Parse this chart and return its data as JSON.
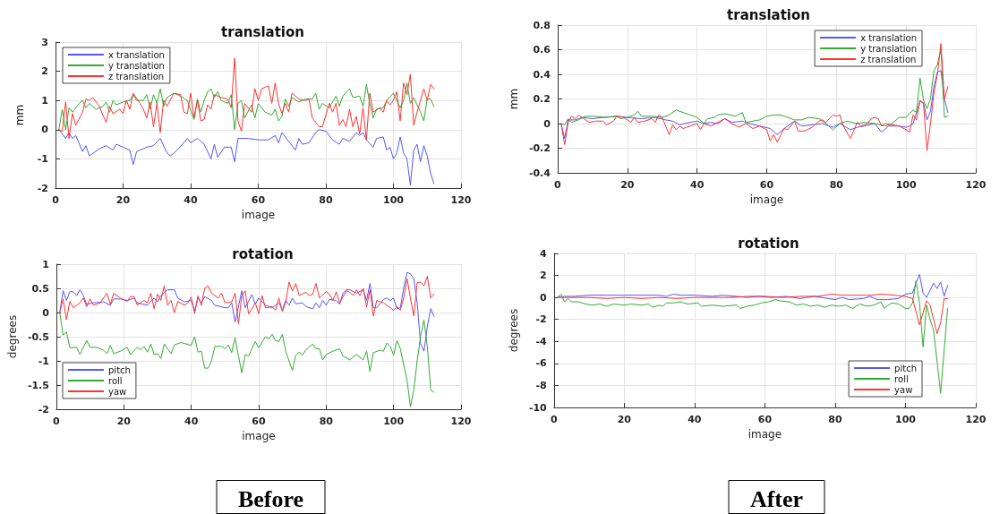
{
  "chart_data": [
    {
      "type": "line",
      "title": "translation",
      "xlabel": "image",
      "ylabel": "mm",
      "xlim": [
        0,
        120
      ],
      "xticks": [
        0,
        20,
        40,
        60,
        80,
        100,
        120
      ],
      "ylim": [
        -2,
        3
      ],
      "yticks": [
        -2,
        -1,
        0,
        1,
        2,
        3
      ],
      "grid": true,
      "legend": "top left",
      "marker": "none",
      "line_style": "solid",
      "series": [
        {
          "name": "x translation",
          "color": "#5555ff",
          "x": [
            1,
            3,
            4,
            5,
            6,
            8,
            9,
            10,
            13,
            15,
            17,
            18,
            20,
            22,
            23,
            24,
            27,
            29,
            31,
            33,
            34,
            36,
            39,
            40,
            42,
            44,
            46,
            47,
            48,
            50,
            52,
            53,
            54,
            57,
            60,
            63,
            65,
            66,
            67,
            69,
            71,
            72,
            73,
            75,
            77,
            78,
            80,
            82,
            84,
            85,
            87,
            89,
            90,
            91,
            92,
            94,
            95,
            97,
            98,
            99,
            100,
            101,
            102,
            103,
            104,
            105,
            106,
            107,
            108,
            109,
            110,
            111,
            112
          ],
          "values": [
            0,
            -0.3,
            -0.1,
            -0.3,
            -0.2,
            -0.75,
            -0.55,
            -0.9,
            -0.65,
            -0.55,
            -0.7,
            -0.5,
            -0.6,
            -0.7,
            -1.2,
            -0.75,
            -0.6,
            -0.55,
            -0.3,
            -0.8,
            -0.9,
            -0.7,
            -0.3,
            -0.45,
            -0.3,
            -0.5,
            -1.0,
            -0.5,
            -0.95,
            -0.6,
            -0.6,
            -1.1,
            -0.3,
            -0.3,
            -0.35,
            -0.35,
            -0.2,
            -0.45,
            -0.1,
            -0.4,
            -0.7,
            -0.3,
            -0.5,
            -0.45,
            -0.1,
            0,
            -0.05,
            -0.35,
            -0.5,
            -0.3,
            -0.4,
            -0.1,
            -0.2,
            -0.1,
            -0.35,
            -0.6,
            -0.3,
            -0.25,
            -0.7,
            -0.6,
            -1.0,
            -0.8,
            -0.25,
            -0.8,
            -1.0,
            -1.9,
            -0.7,
            -0.5,
            -1.1,
            -0.55,
            -0.9,
            -1.5,
            -1.85
          ]
        },
        {
          "name": "y translation",
          "color": "#33aa33",
          "x": [
            1,
            2,
            3,
            4,
            5,
            7,
            8,
            9,
            10,
            12,
            14,
            15,
            16,
            17,
            18,
            20,
            22,
            23,
            24,
            26,
            27,
            28,
            29,
            30,
            31,
            32,
            33,
            35,
            37,
            39,
            41,
            42,
            43,
            44,
            45,
            46,
            47,
            48,
            49,
            51,
            52,
            53,
            54,
            55,
            56,
            58,
            59,
            60,
            62,
            64,
            65,
            66,
            67,
            68,
            69,
            70,
            72,
            74,
            76,
            77,
            78,
            79,
            81,
            83,
            84,
            85,
            87,
            88,
            90,
            91,
            92,
            93,
            94,
            95,
            97,
            98,
            100,
            102,
            103,
            104,
            105,
            106,
            108,
            109,
            110,
            111,
            112
          ],
          "values": [
            0,
            0.7,
            0,
            0.75,
            0.6,
            0.9,
            1.0,
            0.75,
            0.9,
            0.7,
            0.8,
            0.95,
            0.6,
            1.0,
            0.85,
            0.95,
            1.0,
            1.2,
            1.0,
            1.0,
            1.2,
            0.7,
            1.2,
            0.9,
            1.4,
            0.8,
            1.1,
            1.25,
            1.15,
            1.0,
            0.35,
            1.05,
            0.6,
            1.0,
            1.3,
            1.4,
            1.1,
            1.3,
            1.0,
            0.9,
            1.2,
            0,
            0.9,
            1.0,
            0.4,
            0.85,
            0.4,
            0.9,
            0.6,
            0.5,
            0.7,
            0.3,
            0.45,
            1.05,
            0.8,
            1.1,
            0.95,
            1.05,
            1.05,
            1.25,
            0.7,
            0.9,
            0.75,
            1.15,
            0.8,
            1.15,
            1.4,
            1.1,
            1.15,
            0.8,
            1.55,
            0.9,
            0.4,
            0.7,
            0.75,
            1.0,
            1.25,
            0.75,
            1.0,
            1.6,
            0.9,
            1.1,
            0.6,
            0.3,
            1.05,
            1.05,
            0.8
          ]
        },
        {
          "name": "z translation",
          "color": "#ff3333",
          "x": [
            1,
            2,
            3,
            4,
            5,
            6,
            8,
            9,
            10,
            11,
            13,
            14,
            15,
            16,
            17,
            19,
            20,
            21,
            22,
            23,
            25,
            26,
            27,
            28,
            29,
            30,
            31,
            32,
            33,
            35,
            37,
            38,
            39,
            40,
            41,
            42,
            43,
            44,
            45,
            46,
            47,
            49,
            51,
            52,
            53,
            54,
            55,
            56,
            58,
            59,
            60,
            61,
            63,
            64,
            65,
            66,
            67,
            68,
            69,
            70,
            72,
            74,
            75,
            76,
            77,
            78,
            79,
            80,
            81,
            82,
            83,
            84,
            85,
            86,
            87,
            88,
            89,
            90,
            91,
            92,
            93,
            94,
            96,
            97,
            98,
            99,
            100,
            101,
            102,
            103,
            104,
            105,
            106,
            107,
            108,
            109,
            110,
            111,
            112
          ],
          "values": [
            0,
            -0.05,
            0.95,
            -0.3,
            0.55,
            0.15,
            0.6,
            1.05,
            1.0,
            1.1,
            0.8,
            0.5,
            0.25,
            0.8,
            0.55,
            0.7,
            0.55,
            1.0,
            0.7,
            1.25,
            0.9,
            0.7,
            0.4,
            0.95,
            0.1,
            0.9,
            -0.1,
            1.0,
            0.8,
            1.25,
            1.2,
            0.6,
            0.55,
            1.25,
            0.4,
            1.0,
            0.3,
            0.35,
            0.85,
            0.7,
            1.2,
            1.1,
            1.05,
            0.75,
            2.45,
            0.3,
            -0.05,
            0.9,
            0.6,
            1.4,
            1.0,
            1.4,
            1.5,
            0.9,
            1.6,
            0.9,
            0.55,
            0.9,
            0.6,
            1.25,
            1.05,
            1.0,
            1.05,
            0.4,
            0.25,
            0.1,
            0.1,
            0.5,
            0.9,
            0.6,
            0.9,
            0.15,
            0.35,
            0.1,
            0.7,
            0.1,
            0.45,
            -0.15,
            0.75,
            -0.35,
            1.25,
            0.6,
            0.75,
            0.6,
            1.0,
            0.85,
            1.0,
            1.3,
            0.3,
            1.6,
            1.2,
            1.9,
            0.15,
            0.6,
            1.0,
            1.4,
            1.0,
            1.55,
            1.4
          ]
        }
      ]
    },
    {
      "type": "line",
      "title": "translation",
      "xlabel": "image",
      "ylabel": "mm",
      "xlim": [
        0,
        120
      ],
      "xticks": [
        0,
        20,
        40,
        60,
        80,
        100,
        120
      ],
      "ylim": [
        -0.4,
        0.8
      ],
      "yticks": [
        -0.4,
        -0.2,
        0,
        0.2,
        0.4,
        0.6,
        0.8
      ],
      "grid": true,
      "legend": "top right",
      "marker": "none",
      "line_style": "solid",
      "series": [
        {
          "name": "x translation",
          "color": "#5555ff",
          "x": [
            1,
            2,
            3,
            5,
            7,
            10,
            13,
            17,
            20,
            24,
            28,
            31,
            33,
            35,
            38,
            40,
            42,
            44,
            46,
            48,
            50,
            53,
            55,
            58,
            61,
            63,
            65,
            68,
            70,
            73,
            76,
            79,
            81,
            84,
            86,
            88,
            91,
            93,
            95,
            98,
            100,
            101,
            102,
            104,
            105,
            106,
            107,
            108,
            109,
            110,
            111,
            112
          ],
          "values": [
            0,
            -0.12,
            0.03,
            0.03,
            0.05,
            0.04,
            0.05,
            0.06,
            0.05,
            0.04,
            0.05,
            0.03,
            0.02,
            -0.01,
            0.01,
            0.02,
            0,
            0.01,
            0,
            0.04,
            0.01,
            0.02,
            0,
            -0.02,
            -0.04,
            -0.09,
            -0.04,
            0.02,
            -0.02,
            -0.01,
            0,
            -0.03,
            0,
            -0.05,
            -0.03,
            -0.02,
            0,
            -0.07,
            -0.02,
            -0.02,
            -0.03,
            -0.02,
            0,
            0.18,
            0.17,
            0.03,
            0.1,
            0.3,
            0.42,
            0.43,
            0.2,
            0.09
          ]
        },
        {
          "name": "y translation",
          "color": "#33aa33",
          "x": [
            1,
            2,
            3,
            4,
            6,
            8,
            10,
            14,
            17,
            18,
            20,
            22,
            23,
            24,
            27,
            30,
            32,
            34,
            37,
            40,
            42,
            43,
            45,
            46,
            48,
            51,
            53,
            54,
            56,
            58,
            60,
            62,
            64,
            66,
            68,
            70,
            72,
            75,
            77,
            79,
            81,
            83,
            86,
            88,
            91,
            94,
            96,
            98,
            100,
            101,
            102,
            103,
            104,
            105,
            106,
            107,
            108,
            109,
            110,
            111,
            112
          ],
          "values": [
            0,
            -0.01,
            0.04,
            0.01,
            0.03,
            0.06,
            0.06,
            0.05,
            0.06,
            0.04,
            0.05,
            0.07,
            0.1,
            0.06,
            0.06,
            0.05,
            0.07,
            0.11,
            0.08,
            0.05,
            0,
            0.04,
            0.05,
            0.07,
            0.08,
            0.06,
            0.09,
            0.01,
            0.02,
            0.03,
            0.06,
            0.07,
            0.07,
            0.05,
            0.03,
            0.03,
            0.05,
            0.04,
            0,
            -0.05,
            0,
            0.02,
            0,
            0.01,
            0,
            -0.02,
            0,
            0.05,
            0.05,
            0.08,
            0.11,
            0.09,
            0.37,
            0.19,
            0.12,
            0.2,
            0.43,
            0.48,
            0.6,
            0.05,
            0.06
          ]
        },
        {
          "name": "z translation",
          "color": "#ff3333",
          "x": [
            1,
            2,
            3,
            4,
            5,
            6,
            7,
            9,
            11,
            13,
            14,
            16,
            17,
            19,
            21,
            22,
            23,
            25,
            27,
            28,
            29,
            30,
            32,
            33,
            34,
            35,
            36,
            38,
            40,
            41,
            42,
            44,
            46,
            48,
            50,
            52,
            54,
            56,
            58,
            60,
            61,
            62,
            63,
            65,
            66,
            68,
            69,
            71,
            73,
            75,
            76,
            77,
            78,
            79,
            80,
            81,
            82,
            84,
            86,
            87,
            89,
            90,
            91,
            92,
            93,
            94,
            96,
            98,
            100,
            101,
            102,
            103,
            104,
            105,
            106,
            107,
            108,
            109,
            110,
            111,
            112
          ],
          "values": [
            0,
            -0.17,
            0.01,
            0.06,
            0.04,
            0.07,
            0.05,
            0.01,
            0.02,
            0.02,
            -0.01,
            0.02,
            0.06,
            0.05,
            0.01,
            0.05,
            0.01,
            0.02,
            0.04,
            0.01,
            0.07,
            0.05,
            -0.09,
            -0.01,
            -0.05,
            -0.02,
            -0.04,
            -0.02,
            0,
            -0.05,
            0,
            -0.02,
            0.01,
            0.04,
            0,
            -0.03,
            0,
            -0.04,
            -0.02,
            -0.05,
            -0.14,
            -0.09,
            -0.15,
            -0.04,
            -0.05,
            0.02,
            -0.06,
            -0.06,
            -0.03,
            0.02,
            0.03,
            0.01,
            0.04,
            0.07,
            0.06,
            0.07,
            -0.02,
            -0.12,
            0.01,
            -0.02,
            0,
            0.04,
            0.05,
            0.04,
            -0.02,
            0,
            -0.01,
            -0.02,
            -0.05,
            -0.07,
            0.07,
            0.03,
            0.19,
            0.16,
            -0.22,
            0,
            0.25,
            0.4,
            0.65,
            0.2,
            0.3
          ]
        }
      ]
    },
    {
      "type": "line",
      "title": "rotation",
      "xlabel": "image",
      "ylabel": "degrees",
      "xlim": [
        0,
        120
      ],
      "xticks": [
        0,
        20,
        40,
        60,
        80,
        100,
        120
      ],
      "ylim": [
        -2,
        1
      ],
      "yticks": [
        -2,
        -1.5,
        -1,
        -0.5,
        0,
        0.5,
        1
      ],
      "grid": true,
      "legend": "bottom left",
      "marker": "none",
      "line_style": "solid",
      "annotations": [
        "Before"
      ],
      "series": [
        {
          "name": "pitch",
          "color": "#5555ff",
          "x": [
            1,
            2,
            3,
            4,
            5,
            6,
            7,
            8,
            9,
            11,
            14,
            16,
            17,
            19,
            21,
            23,
            24,
            27,
            29,
            30,
            31,
            33,
            35,
            36,
            38,
            40,
            41,
            42,
            43,
            44,
            46,
            47,
            50,
            51,
            52,
            53,
            55,
            56,
            58,
            59,
            60,
            62,
            64,
            66,
            67,
            68,
            69,
            70,
            71,
            73,
            74,
            76,
            77,
            78,
            79,
            80,
            81,
            83,
            84,
            85,
            86,
            87,
            89,
            91,
            92,
            93,
            94,
            95,
            97,
            98,
            99,
            100,
            101,
            102,
            103,
            104,
            105,
            106,
            107,
            108,
            109,
            110,
            111,
            112
          ],
          "values": [
            0,
            0.45,
            0.25,
            0.43,
            0.43,
            0.35,
            0.47,
            0.35,
            0.17,
            0.2,
            0.22,
            0.15,
            0.28,
            0.28,
            0.25,
            0.3,
            0.2,
            0.15,
            0.3,
            0.22,
            0.35,
            0.47,
            0.47,
            0.3,
            0.22,
            0.25,
            0.03,
            0.3,
            0.2,
            0.33,
            0.25,
            0.15,
            0.1,
            0.1,
            0.2,
            -0.2,
            0.45,
            0.1,
            0.37,
            0.17,
            0.3,
            0.15,
            0.1,
            0.2,
            0.05,
            0.25,
            0.15,
            0.3,
            0.18,
            0.2,
            0.12,
            0.08,
            0.2,
            0.1,
            0.25,
            0.15,
            0.27,
            0.25,
            0.17,
            0.4,
            0.47,
            0.47,
            0.4,
            0.47,
            0.25,
            0.6,
            0.1,
            0.1,
            0.27,
            0.3,
            0.25,
            0.3,
            0.08,
            0.1,
            0.5,
            0.83,
            0.8,
            0.7,
            0.2,
            -0.65,
            -0.8,
            -0.3,
            0.08,
            -0.08
          ]
        },
        {
          "name": "roll",
          "color": "#33aa33",
          "x": [
            1,
            2,
            3,
            4,
            6,
            7,
            9,
            10,
            12,
            14,
            15,
            16,
            17,
            19,
            21,
            22,
            24,
            25,
            26,
            27,
            28,
            29,
            30,
            31,
            32,
            34,
            35,
            37,
            40,
            41,
            42,
            43,
            44,
            45,
            46,
            47,
            49,
            50,
            51,
            52,
            53,
            54,
            55,
            56,
            57,
            59,
            60,
            62,
            63,
            64,
            65,
            66,
            67,
            68,
            70,
            71,
            72,
            73,
            74,
            76,
            77,
            78,
            79,
            80,
            82,
            84,
            85,
            87,
            89,
            91,
            92,
            93,
            94,
            96,
            97,
            98,
            99,
            100,
            101,
            102,
            104,
            105,
            106,
            107,
            108,
            109,
            110,
            111,
            112
          ],
          "values": [
            0,
            -0.47,
            -0.4,
            -0.73,
            -0.72,
            -0.87,
            -0.58,
            -0.72,
            -0.72,
            -0.78,
            -0.85,
            -0.68,
            -0.85,
            -0.8,
            -0.72,
            -0.87,
            -0.72,
            -0.77,
            -0.7,
            -0.82,
            -0.65,
            -0.87,
            -0.85,
            -0.95,
            -0.65,
            -0.85,
            -0.67,
            -0.62,
            -0.68,
            -0.5,
            -0.82,
            -0.8,
            -1.15,
            -1.15,
            -1.0,
            -0.7,
            -0.7,
            -0.75,
            -0.67,
            -0.83,
            -0.52,
            -0.9,
            -1.25,
            -0.87,
            -0.9,
            -0.6,
            -0.73,
            -0.5,
            -0.55,
            -0.45,
            -0.58,
            -0.6,
            -0.45,
            -0.8,
            -1.2,
            -0.88,
            -0.82,
            -0.88,
            -0.77,
            -0.65,
            -0.75,
            -0.75,
            -0.98,
            -0.87,
            -0.8,
            -0.75,
            -0.9,
            -0.98,
            -0.87,
            -0.98,
            -0.8,
            -1.22,
            -0.83,
            -0.78,
            -0.8,
            -0.63,
            -0.7,
            -0.88,
            -0.58,
            -0.75,
            -1.4,
            -1.95,
            -1.6,
            -1.0,
            -0.5,
            -0.15,
            -0.7,
            -1.6,
            -1.65
          ]
        },
        {
          "name": "yaw",
          "color": "#ff3333",
          "x": [
            1,
            2,
            3,
            4,
            5,
            7,
            8,
            9,
            10,
            11,
            13,
            15,
            16,
            17,
            19,
            21,
            22,
            23,
            24,
            26,
            27,
            28,
            29,
            30,
            31,
            32,
            33,
            34,
            35,
            36,
            38,
            39,
            40,
            41,
            42,
            43,
            44,
            45,
            46,
            48,
            49,
            50,
            52,
            53,
            54,
            55,
            56,
            57,
            59,
            60,
            61,
            62,
            64,
            65,
            66,
            67,
            68,
            69,
            70,
            71,
            72,
            74,
            75,
            76,
            77,
            78,
            80,
            81,
            82,
            83,
            84,
            86,
            87,
            88,
            89,
            90,
            91,
            92,
            93,
            94,
            95,
            97,
            99,
            100,
            101,
            102,
            103,
            104,
            105,
            106,
            107,
            108,
            109,
            110,
            111,
            112
          ],
          "values": [
            0,
            0.28,
            -0.15,
            0.23,
            0.1,
            0.2,
            0.3,
            0.12,
            0.28,
            0.15,
            0.2,
            0.4,
            0.17,
            0.4,
            0.3,
            0.23,
            0.33,
            0.33,
            0.15,
            0.25,
            0.2,
            0.4,
            0.08,
            0.38,
            0.25,
            0.55,
            0.15,
            0.25,
            0,
            0.23,
            0.15,
            0.2,
            0.32,
            -0.02,
            0.35,
            0.15,
            0.5,
            0.55,
            0.4,
            0.3,
            0.4,
            0.2,
            0.22,
            0.4,
            -0.23,
            0.35,
            0.45,
            -0.03,
            0.2,
            -0.02,
            0.35,
            0.1,
            0.12,
            0.05,
            0.3,
            0.02,
            0.2,
            0.63,
            0.45,
            0.6,
            0.35,
            0.42,
            0.35,
            0.38,
            0.6,
            0.3,
            0.43,
            0.38,
            0.25,
            0.43,
            0.2,
            0.45,
            0.42,
            0.35,
            0.47,
            0.35,
            0.5,
            0.12,
            0.47,
            -0.07,
            0.25,
            0.2,
            0.1,
            0.05,
            0.12,
            0.05,
            0.3,
            0.7,
            0.3,
            -0.07,
            0.62,
            0.63,
            0.55,
            0.75,
            0.3,
            0.38
          ]
        }
      ]
    },
    {
      "type": "line",
      "title": "rotation",
      "xlabel": "image",
      "ylabel": "degrees",
      "xlim": [
        0,
        120
      ],
      "xticks": [
        0,
        20,
        40,
        60,
        80,
        100,
        120
      ],
      "ylim": [
        -10,
        4
      ],
      "yticks": [
        -10,
        -8,
        -6,
        -4,
        -2,
        0,
        2,
        4
      ],
      "grid": true,
      "legend": "bottom right",
      "marker": "none",
      "line_style": "solid",
      "annotations": [
        "After"
      ],
      "series": [
        {
          "name": "pitch",
          "color": "#5555ff",
          "x": [
            1,
            3,
            6,
            10,
            15,
            20,
            23,
            26,
            30,
            32,
            34,
            36,
            40,
            45,
            48,
            52,
            55,
            58,
            62,
            66,
            68,
            70,
            74,
            78,
            80,
            82,
            84,
            88,
            90,
            92,
            95,
            98,
            100,
            102,
            103,
            104,
            105,
            106,
            108,
            109,
            110,
            111,
            112
          ],
          "values": [
            0,
            0.1,
            0.1,
            0.2,
            0.2,
            0.2,
            0.2,
            0.2,
            0.2,
            0.1,
            0.3,
            0.2,
            0.2,
            0.1,
            0.2,
            0.1,
            0,
            0.1,
            0,
            0.1,
            0,
            -0.1,
            0.1,
            -0.1,
            -0.2,
            0,
            -0.2,
            -0.1,
            0.1,
            -0.2,
            -0.2,
            -0.1,
            0.3,
            0.4,
            1.3,
            2.1,
            0.4,
            0,
            1.3,
            0.8,
            1.4,
            0.1,
            1.1
          ]
        },
        {
          "name": "roll",
          "color": "#33aa33",
          "x": [
            1,
            2,
            3,
            4,
            5,
            7,
            9,
            11,
            13,
            15,
            17,
            20,
            22,
            25,
            27,
            28,
            30,
            31,
            32,
            34,
            36,
            38,
            41,
            42,
            45,
            48,
            52,
            53,
            55,
            57,
            59,
            61,
            63,
            64,
            67,
            69,
            71,
            73,
            75,
            77,
            79,
            81,
            83,
            85,
            87,
            89,
            91,
            93,
            94,
            96,
            98,
            100,
            101,
            102,
            103,
            104,
            105,
            106,
            107,
            108,
            110,
            112
          ],
          "values": [
            0,
            0.3,
            -0.4,
            -0.1,
            -0.4,
            -0.4,
            -0.6,
            -0.7,
            -0.6,
            -0.8,
            -0.6,
            -0.7,
            -0.6,
            -0.7,
            -0.6,
            -0.9,
            -0.7,
            -0.8,
            -0.5,
            -0.5,
            -0.4,
            -0.6,
            -0.5,
            -0.8,
            -0.7,
            -0.8,
            -0.7,
            -1.0,
            -0.8,
            -0.7,
            -0.5,
            -0.4,
            -0.2,
            -0.3,
            -0.4,
            -0.7,
            -0.6,
            -0.8,
            -0.7,
            -0.9,
            -0.7,
            -0.8,
            -0.7,
            -1.0,
            -0.6,
            -0.8,
            -0.7,
            -0.4,
            -1.0,
            -0.5,
            -0.6,
            -1.0,
            -1.0,
            -0.5,
            1.5,
            -0.5,
            -4.5,
            -0.7,
            -2.0,
            -3.0,
            -8.7,
            -1.0
          ]
        },
        {
          "name": "yaw",
          "color": "#ff3333",
          "x": [
            1,
            5,
            10,
            15,
            20,
            25,
            30,
            35,
            40,
            45,
            50,
            55,
            60,
            65,
            70,
            75,
            79,
            82,
            85,
            90,
            93,
            97,
            100,
            102,
            104,
            106,
            107,
            109,
            110,
            111,
            112
          ],
          "values": [
            0,
            0,
            0,
            -0.1,
            0,
            -0.1,
            0,
            -0.1,
            0,
            0,
            0,
            0.1,
            0.1,
            0,
            0.1,
            0.1,
            0.3,
            0.2,
            0.2,
            0.2,
            0.3,
            0.2,
            0.1,
            -0.1,
            -2.5,
            -0.3,
            -0.7,
            -3.3,
            -2.3,
            -0.1,
            -0.1
          ]
        }
      ]
    }
  ]
}
